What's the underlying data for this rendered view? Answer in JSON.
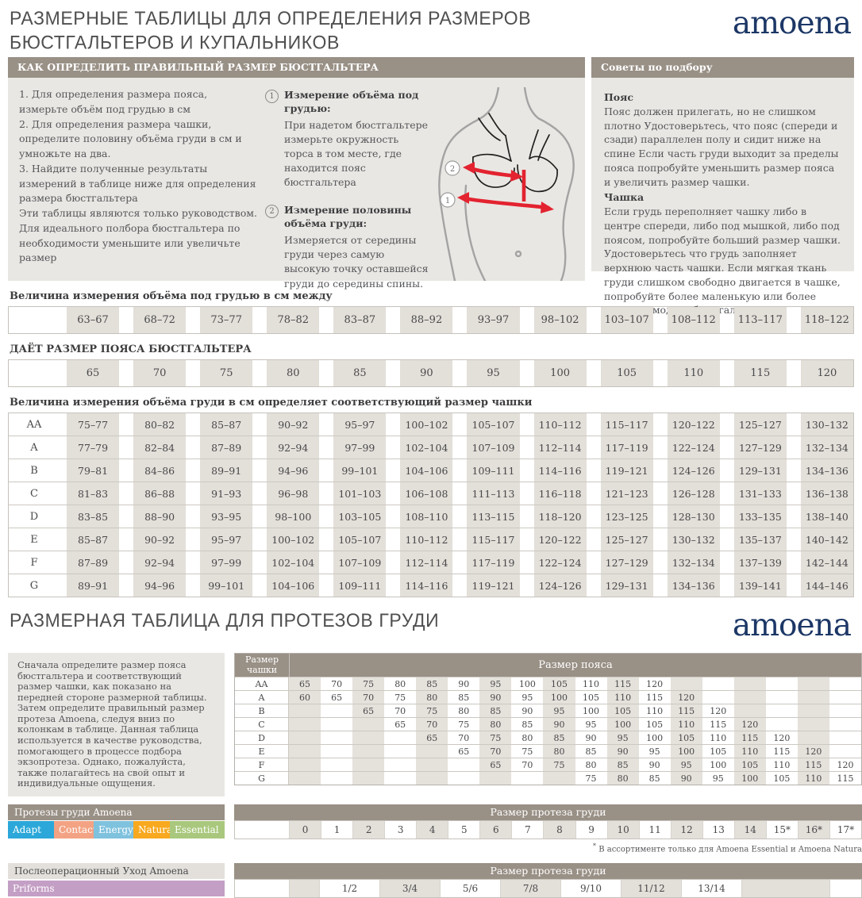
{
  "header": {
    "title_line1": "РАЗМЕРНЫЕ ТАБЛИЦЫ ДЛЯ ОПРЕДЕЛЕНИЯ РАЗМЕРОВ",
    "title_line2": "БЮСТГАЛЬТЕРОВ И КУПАЛЬНИКОВ",
    "brand": "amoena"
  },
  "how_to": {
    "header": "КАК ОПРЕДЕЛИТЬ ПРАВИЛЬНЫЙ РАЗМЕР БЮСТГАЛЬТЕРА",
    "steps": "1. Для определения размера пояса, измерьте объём под грудью в см\n2.  Для определения размера чашки, определите половину объёма груди в см и умножьте на два.\n3.  Найдите полученные результаты измерений в таблице ниже для определения размера бюстгальтера\nЭти таблицы являются только руководством.\nДля идеального полбора бюстгальтера по необходимости уменьшите или увеличьте размер",
    "measurements": [
      {
        "num": "1",
        "title": "Измерение объёма под грудью:",
        "text": "При надетом бюстгальтере измерьте окружность торса в том месте, где находится пояс бюстгальтера"
      },
      {
        "num": "2",
        "title": "Измерение половины объёма груди:",
        "text": "Измеряется от середины груди через самую высокую точку оставшейся груди до середины спины."
      }
    ]
  },
  "tips": {
    "header": "Советы по подбору",
    "sections": [
      {
        "title": "Пояс",
        "text": "Пояс должен прилегать, но не слишком плотно Удостоверьтесь, что пояс (спереди и сзади) параллелен полу и сидит ниже на спине Если часть груди выходит за пределы пояса попробуйте уменьшить размер пояса и увеличить размер чашки."
      },
      {
        "title": "Чашка",
        "text": "Если грудь переполняет чашку либо в центре спереди, либо под мышкой, либо под поясом, попробуйте больший размер чашки. Удостоверьтесь что грудь заполняет верхнюю часть чашки. Если мягкая ткань груди слишком свободно двигается в чашке, попробуйте более маленькую или более плоскую модель бюстгальтера"
      }
    ]
  },
  "underbust": {
    "label": "Величина измерения объёма под грудью в см между",
    "values": [
      "63–67",
      "68–72",
      "73–77",
      "78–82",
      "83–87",
      "88–92",
      "93–97",
      "98–102",
      "103–107",
      "108–112",
      "113–117",
      "118–122"
    ]
  },
  "band": {
    "label": "ДАЁТ РАЗМЕР ПОЯСА БЮСТГАЛЬТЕРА",
    "values": [
      "65",
      "70",
      "75",
      "80",
      "85",
      "90",
      "95",
      "100",
      "105",
      "110",
      "115",
      "120"
    ]
  },
  "cups": {
    "label": "Величина измерения объёма груди в см определяет соответствующий размер чашки",
    "rows": [
      {
        "cup": "AA",
        "values": [
          "75–77",
          "80–82",
          "85–87",
          "90–92",
          "95–97",
          "100–102",
          "105–107",
          "110–112",
          "115–117",
          "120–122",
          "125–127",
          "130–132"
        ]
      },
      {
        "cup": "A",
        "values": [
          "77–79",
          "82–84",
          "87–89",
          "92–94",
          "97–99",
          "102–104",
          "107–109",
          "112–114",
          "117–119",
          "122–124",
          "127–129",
          "132–134"
        ]
      },
      {
        "cup": "B",
        "values": [
          "79–81",
          "84–86",
          "89–91",
          "94–96",
          "99–101",
          "104–106",
          "109–111",
          "114–116",
          "119–121",
          "124–126",
          "129–131",
          "134–136"
        ]
      },
      {
        "cup": "C",
        "values": [
          "81–83",
          "86–88",
          "91–93",
          "96–98",
          "101–103",
          "106–108",
          "111–113",
          "116–118",
          "121–123",
          "126–128",
          "131–133",
          "136–138"
        ]
      },
      {
        "cup": "D",
        "values": [
          "83–85",
          "88–90",
          "93–95",
          "98–100",
          "103–105",
          "108–110",
          "113–115",
          "118–120",
          "123–125",
          "128–130",
          "133–135",
          "138–140"
        ]
      },
      {
        "cup": "E",
        "values": [
          "85–87",
          "90–92",
          "95–97",
          "100–102",
          "105–107",
          "110–112",
          "115–117",
          "120–122",
          "125–127",
          "130–132",
          "135–137",
          "140–142"
        ]
      },
      {
        "cup": "F",
        "values": [
          "87–89",
          "92–94",
          "97–99",
          "102–104",
          "107–109",
          "112–114",
          "117–119",
          "122–124",
          "127–129",
          "132–134",
          "137–139",
          "142–144"
        ]
      },
      {
        "cup": "G",
        "values": [
          "89–91",
          "94–96",
          "99–101",
          "104–106",
          "109–111",
          "114–116",
          "119–121",
          "124–126",
          "129–131",
          "134–136",
          "139–141",
          "144–146"
        ]
      }
    ]
  },
  "section2": {
    "title": "РАЗМЕРНАЯ ТАБЛИЦА ДЛЯ ПРОТЕЗОВ ГРУДИ",
    "brand": "amoena"
  },
  "prosthesis": {
    "intro": "Сначала определите размер пояса бюстгальтера и соответствующий размер чашки, как показано на передней стороне размерной таблицы. Затем определите правильный размер протеза Amoena, следуя вниз по колонкам в таблице. Данная таблица используется в качестве руководства, помогающего в процессе подбора экзопротеза. Однако, пожалуйста, также полагайтесь на свой опыт и индивидуальные ощущения.",
    "cup_header": "Размер чашки",
    "band_header": "Размер пояса",
    "rows": [
      {
        "cup": "AA",
        "values": [
          "65",
          "70",
          "75",
          "80",
          "85",
          "90",
          "95",
          "100",
          "105",
          "110",
          "115",
          "120",
          "",
          "",
          "",
          "",
          "",
          ""
        ]
      },
      {
        "cup": "A",
        "values": [
          "60",
          "65",
          "70",
          "75",
          "80",
          "85",
          "90",
          "95",
          "100",
          "105",
          "110",
          "115",
          "120",
          "",
          "",
          "",
          "",
          ""
        ]
      },
      {
        "cup": "B",
        "values": [
          "",
          "",
          "65",
          "70",
          "75",
          "80",
          "85",
          "90",
          "95",
          "100",
          "105",
          "110",
          "115",
          "120",
          "",
          "",
          "",
          ""
        ]
      },
      {
        "cup": "C",
        "values": [
          "",
          "",
          "",
          "65",
          "70",
          "75",
          "80",
          "85",
          "90",
          "95",
          "100",
          "105",
          "110",
          "115",
          "120",
          "",
          "",
          ""
        ]
      },
      {
        "cup": "D",
        "values": [
          "",
          "",
          "",
          "",
          "65",
          "70",
          "75",
          "80",
          "85",
          "90",
          "95",
          "100",
          "105",
          "110",
          "115",
          "120",
          "",
          ""
        ]
      },
      {
        "cup": "E",
        "values": [
          "",
          "",
          "",
          "",
          "",
          "65",
          "70",
          "75",
          "80",
          "85",
          "90",
          "95",
          "100",
          "105",
          "110",
          "115",
          "120",
          ""
        ]
      },
      {
        "cup": "F",
        "values": [
          "",
          "",
          "",
          "",
          "",
          "",
          "65",
          "70",
          "75",
          "80",
          "85",
          "90",
          "95",
          "100",
          "105",
          "110",
          "115",
          "120"
        ]
      },
      {
        "cup": "G",
        "values": [
          "",
          "",
          "",
          "",
          "",
          "",
          "",
          "",
          "",
          "75",
          "80",
          "85",
          "90",
          "95",
          "100",
          "105",
          "110",
          "115"
        ]
      }
    ]
  },
  "products": {
    "header": "Протезы груди Amoena",
    "chips": [
      {
        "label": "Adapt",
        "color": "#2ba8d9"
      },
      {
        "label": "Contact",
        "color": "#f3a383"
      },
      {
        "label": "Energy",
        "color": "#7fc2de"
      },
      {
        "label": "Natura",
        "color": "#f8a91f"
      },
      {
        "label": "Essential",
        "color": "#a9c87d"
      }
    ]
  },
  "prosthesis_sizes": {
    "header": "Размер протеза груди",
    "values": [
      "0",
      "1",
      "2",
      "3",
      "4",
      "5",
      "6",
      "7",
      "8",
      "9",
      "10",
      "11",
      "12",
      "13",
      "14",
      "15*",
      "16*",
      "17*"
    ],
    "footnote_mark": "*",
    "footnote": " В ассортименте только для  Amoena Essential и Amoena Natura"
  },
  "aftercare": {
    "header": "Послеоперационный Уход Amoena",
    "chip": {
      "label": "Priforms",
      "color": "#c49fc5"
    },
    "sizes_header": "Размер протеза груди",
    "values": [
      "1/2",
      "3/4",
      "5/6",
      "7/8",
      "9/10",
      "11/12",
      "13/14"
    ]
  },
  "colors": {
    "header_taupe": "#999086",
    "panel_bg": "#e9e7e3",
    "cell_beige": "#e3dfd9",
    "brand_navy": "#1c3766",
    "arrow_red": "#e32330"
  }
}
